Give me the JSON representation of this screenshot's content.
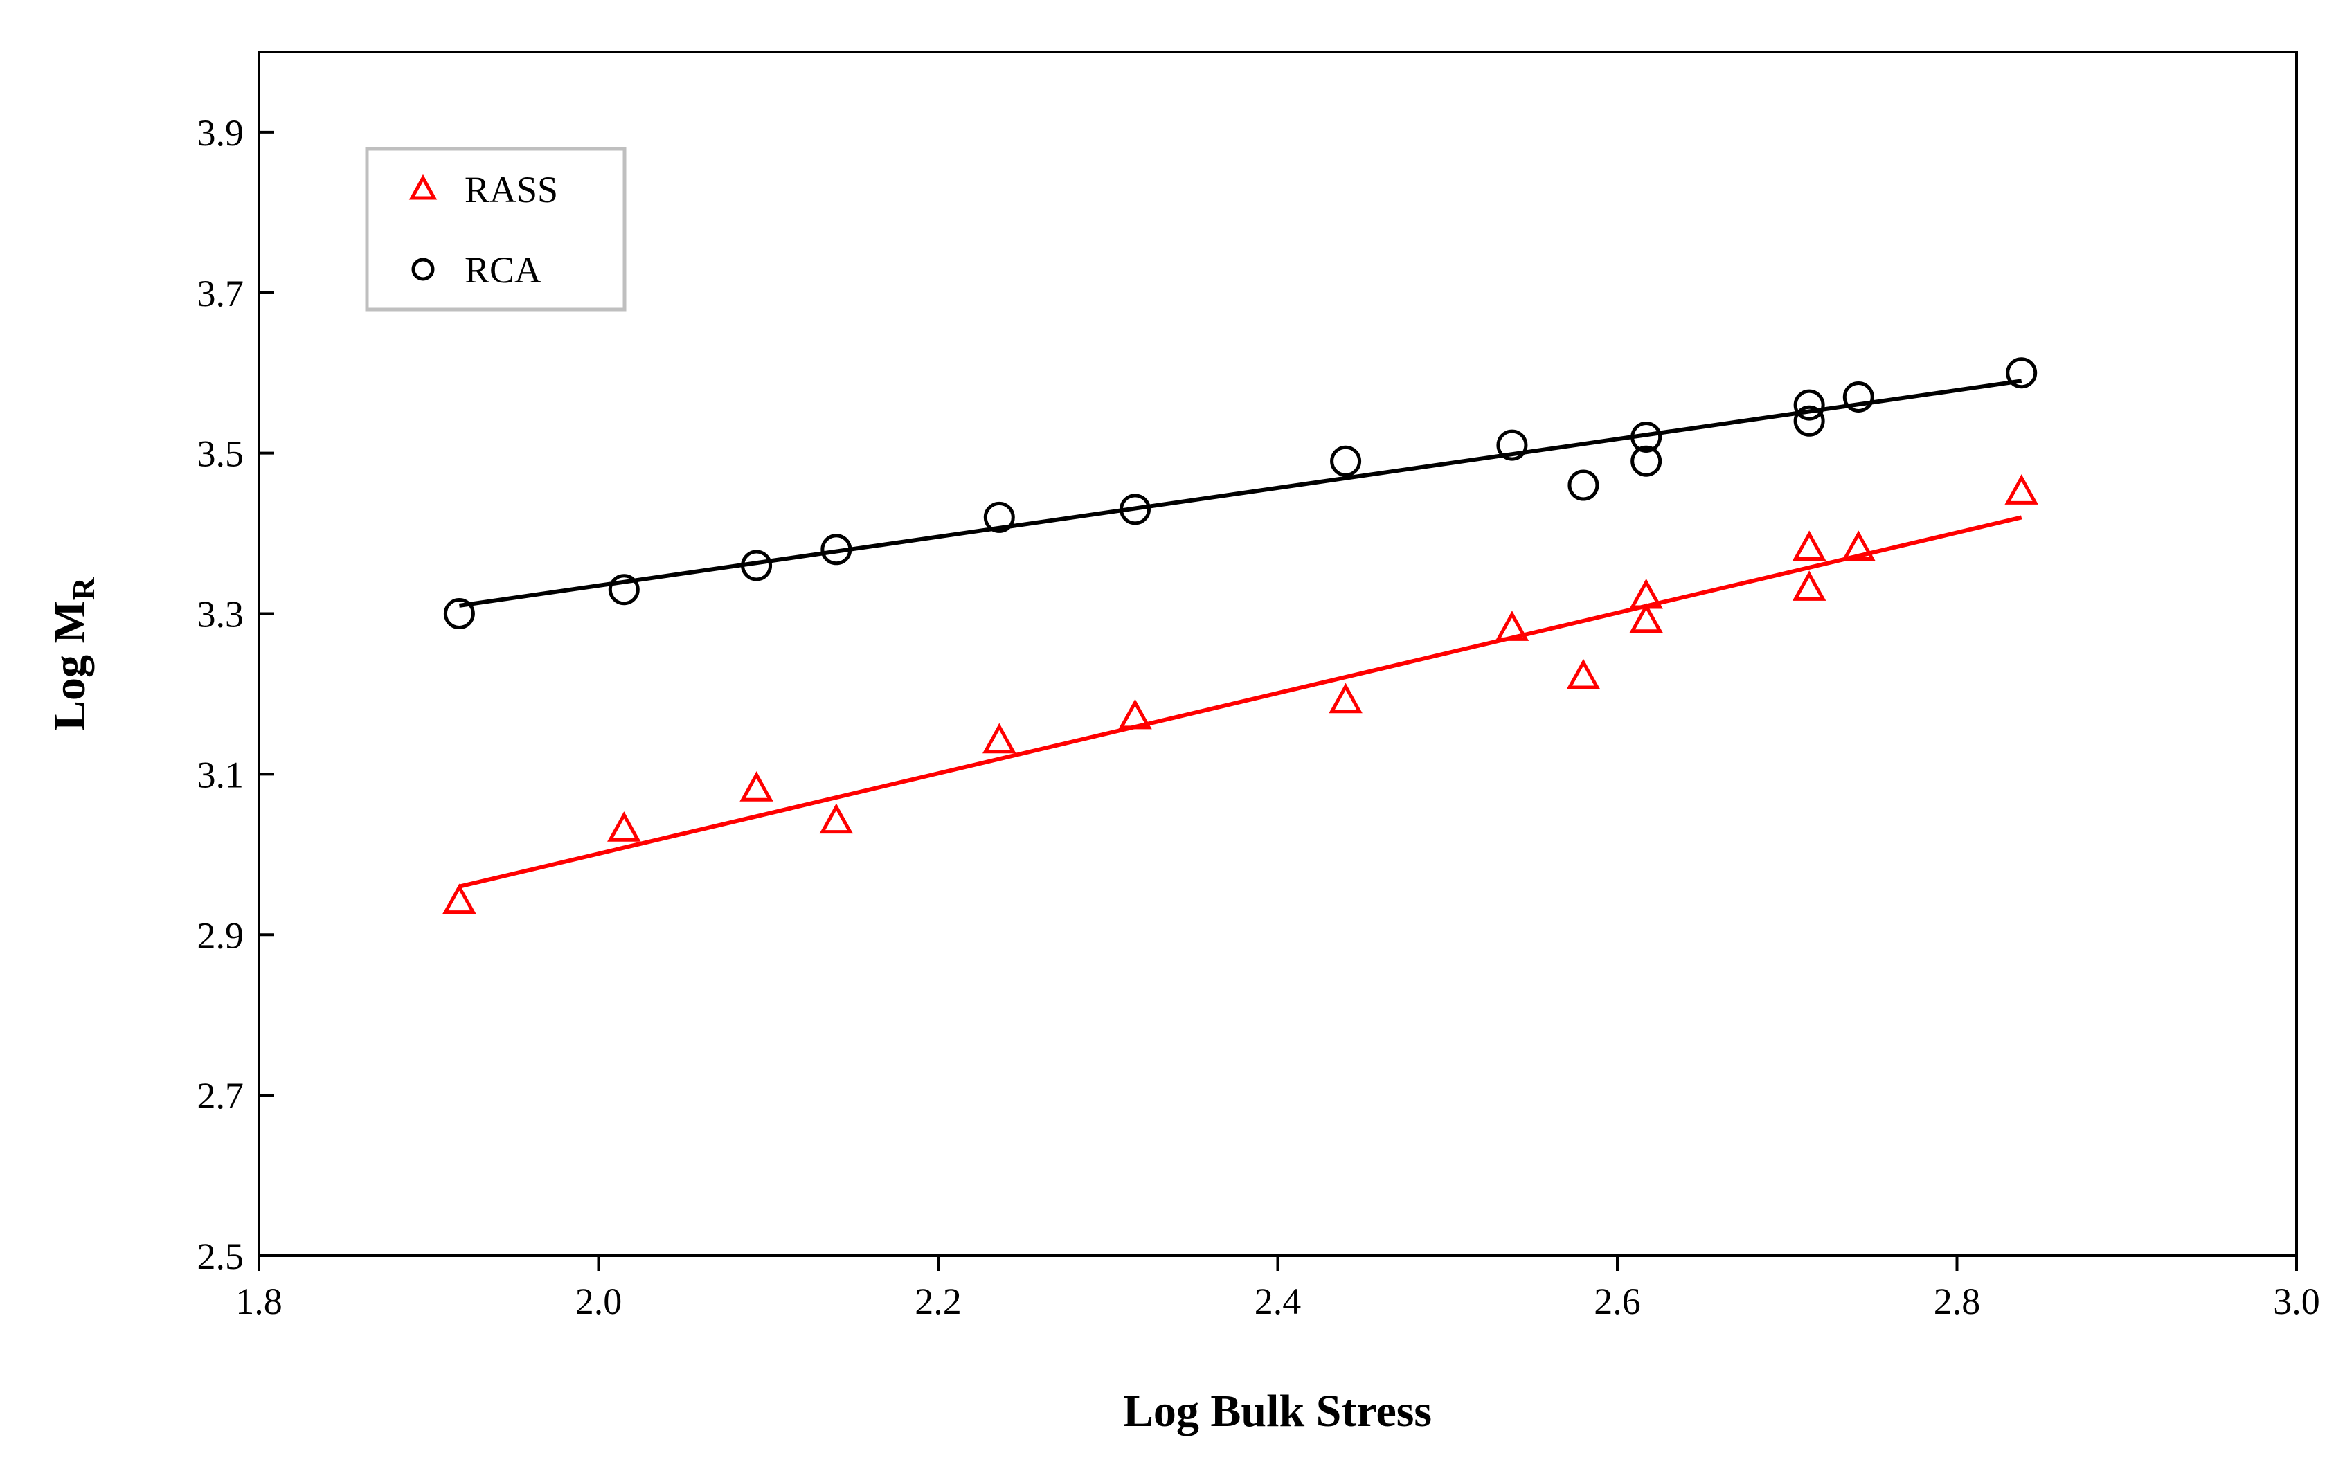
{
  "chart_data": {
    "type": "scatter",
    "xlabel": "Log Bulk Stress",
    "ylabel_main": "Log M",
    "ylabel_sub": "R",
    "xlim": [
      1.8,
      3.0
    ],
    "ylim": [
      2.5,
      4.0
    ],
    "xticks": [
      1.8,
      2.0,
      2.2,
      2.4,
      2.6,
      2.8,
      3.0
    ],
    "xtick_labels": [
      "1.8",
      "2.0",
      "2.2",
      "2.4",
      "2.6",
      "2.8",
      "3.0"
    ],
    "yticks": [
      2.5,
      2.7,
      2.9,
      3.1,
      3.3,
      3.5,
      3.7,
      3.9
    ],
    "ytick_labels": [
      "2.5",
      "2.7",
      "2.9",
      "3.1",
      "3.3",
      "3.5",
      "3.7",
      "3.9"
    ],
    "legend_position": "top-left",
    "grid": false,
    "series": [
      {
        "name": "RASS",
        "marker": "triangle",
        "color": "#ff0000",
        "x": [
          1.918,
          2.015,
          2.093,
          2.14,
          2.236,
          2.316,
          2.44,
          2.538,
          2.58,
          2.617,
          2.617,
          2.713,
          2.713,
          2.742,
          2.838
        ],
        "y": [
          2.94,
          3.03,
          3.08,
          3.04,
          3.14,
          3.17,
          3.19,
          3.28,
          3.22,
          3.32,
          3.29,
          3.38,
          3.33,
          3.38,
          3.45
        ],
        "trendline": {
          "x": [
            1.918,
            2.838
          ],
          "y": [
            2.96,
            3.42
          ]
        }
      },
      {
        "name": "RCA",
        "marker": "circle",
        "color": "#000000",
        "x": [
          1.918,
          2.015,
          2.093,
          2.14,
          2.236,
          2.316,
          2.44,
          2.538,
          2.58,
          2.617,
          2.617,
          2.713,
          2.713,
          2.742,
          2.838
        ],
        "y": [
          3.3,
          3.33,
          3.36,
          3.38,
          3.42,
          3.43,
          3.49,
          3.51,
          3.46,
          3.52,
          3.49,
          3.56,
          3.54,
          3.57,
          3.6
        ],
        "trendline": {
          "x": [
            1.918,
            2.838
          ],
          "y": [
            3.31,
            3.59
          ]
        }
      }
    ]
  }
}
